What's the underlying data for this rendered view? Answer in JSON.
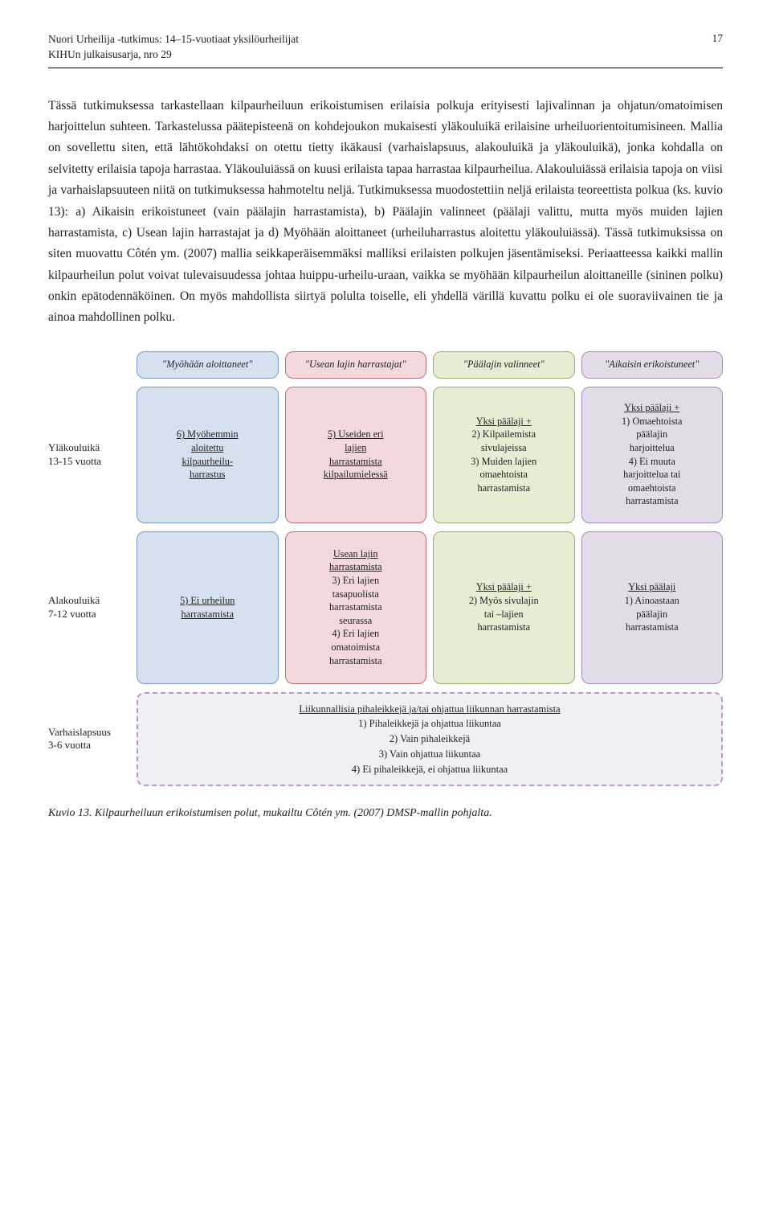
{
  "header": {
    "title_line1": "Nuori Urheilija -tutkimus: 14–15-vuotiaat yksilöurheilijat",
    "title_line2": "KIHUn julkaisusarja, nro 29",
    "page_number": "17"
  },
  "paragraph": "Tässä tutkimuksessa tarkastellaan kilpaurheiluun erikoistumisen erilaisia polkuja erityisesti lajivalinnan ja ohjatun/omatoimisen harjoittelun suhteen. Tarkastelussa päätepisteenä on kohdejoukon mukaisesti yläkouluikä erilaisine urheiluorientoitumisineen. Mallia on sovellettu siten, että lähtökohdaksi on otettu tietty ikäkausi (varhaislapsuus, alakouluikä ja yläkouluikä), jonka kohdalla on selvitetty erilaisia tapoja harrastaa. Yläkouluiässä on kuusi erilaista tapaa harrastaa kilpaurheilua. Alakouluiässä erilaisia tapoja on viisi ja varhaislapsuuteen niitä on tutkimuksessa hahmoteltu neljä. Tutkimuksessa muodostettiin neljä erilaista teoreettista polkua (ks. kuvio 13): a) Aikaisin erikoistuneet (vain päälajin harrastamista), b) Päälajin valinneet (päälaji valittu, mutta myös muiden lajien harrastamista, c) Usean lajin harrastajat ja d) Myöhään aloittaneet (urheiluharrastus aloitettu yläkouluiässä). Tässä tutkimuksissa on siten muovattu Côtén ym. (2007) mallia seikkaperäisemmäksi malliksi erilaisten polkujen jäsentämiseksi. Periaatteessa kaikki mallin kilpaurheilun polut voivat tulevaisuudessa johtaa huippu-urheilu-uraan, vaikka se myöhään kilpaurheilun aloittaneille (sininen polku) onkin epätodennäköinen. On myös mahdollista siirtyä polulta toiselle, eli yhdellä värillä kuvattu polku ei ole suoraviivainen tie ja ainoa mahdollinen polku.",
  "diagram": {
    "colors": {
      "blue_bg": "#d6e1ef",
      "blue_border": "#7a9ac6",
      "pink_bg": "#f3d8dc",
      "pink_border": "#c06a7a",
      "green_bg": "#e5edd4",
      "green_border": "#9bb06a",
      "purple_bg": "#e4dbe9",
      "purple_border": "#a98cbb",
      "bottom_bg": "#f2eef6",
      "bottom_border": "#b89ac8"
    },
    "col_titles": [
      "\"Myöhään aloittaneet\"",
      "\"Usean lajin harrastajat\"",
      "\"Päälajin valinneet\"",
      "\"Aikaisin erikoistuneet\""
    ],
    "rows": {
      "r1": {
        "label_line1": "Yläkouluikä",
        "label_line2": "13-15 vuotta"
      },
      "r2": {
        "label_line1": "Alakouluikä",
        "label_line2": "7-12 vuotta"
      },
      "r3": {
        "label_line1": "Varhaislapsuus",
        "label_line2": "3-6 vuotta"
      }
    },
    "cells": {
      "r1c1": {
        "head": "",
        "lines": [
          "6) Myöhemmin",
          "aloitettu",
          "kilpaurheilu-",
          "harrastus"
        ],
        "underline": [
          0,
          1,
          2,
          3
        ]
      },
      "r1c2": {
        "head": "",
        "lines": [
          "5) Useiden eri",
          "lajien",
          "harrastamista",
          "kilpailumielessä"
        ],
        "underline": [
          0,
          1,
          2,
          3
        ]
      },
      "r1c3": {
        "head": "Yksi päälaji +",
        "lines": [
          "2) Kilpailemista",
          "sivulajeissa",
          "3) Muiden lajien",
          "omaehtoista",
          "harrastamista"
        ],
        "underline": []
      },
      "r1c4": {
        "head": "Yksi päälaji +",
        "lines": [
          "1) Omaehtoista",
          "päälajin",
          "harjoittelua",
          "4) Ei muuta",
          "harjoittelua tai",
          "omaehtoista",
          "harrastamista"
        ],
        "underline": []
      },
      "r2c1": {
        "head": "",
        "lines": [
          "5) Ei urheilun",
          "harrastamista"
        ],
        "underline": [
          0,
          1
        ]
      },
      "r2c2": {
        "head": "Usean lajin",
        "head2": "harrastamista",
        "lines": [
          "3) Eri lajien",
          "tasapuolista",
          "harrastamista",
          "seurassa",
          "4) Eri  lajien",
          "omatoimista",
          "harrastamista"
        ],
        "underline": []
      },
      "r2c3": {
        "head": "Yksi päälaji +",
        "lines": [
          "2) Myös sivulajin",
          "tai –lajien",
          "harrastamista"
        ],
        "underline": []
      },
      "r2c4": {
        "head": "Yksi päälaji",
        "lines": [
          "1) Ainoastaan",
          "päälajin",
          "harrastamista"
        ],
        "underline": []
      }
    },
    "bottom": {
      "head": "Liikunnallisia pihaleikkejä ja/tai ohjattua liikunnan harrastamista",
      "lines": [
        "1) Pihaleikkejä ja ohjattua liikuntaa",
        "2) Vain pihaleikkejä",
        "3) Vain ohjattua liikuntaa",
        "4) Ei pihaleikkejä, ei ohjattua liikuntaa"
      ]
    }
  },
  "caption": "Kuvio 13. Kilpaurheiluun erikoistumisen polut, mukailtu Côtén ym. (2007) DMSP-mallin pohjalta."
}
